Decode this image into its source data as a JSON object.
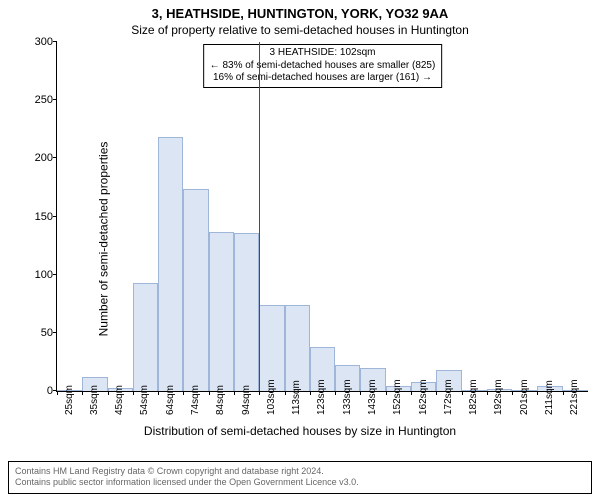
{
  "title_main": "3, HEATHSIDE, HUNTINGTON, YORK, YO32 9AA",
  "title_sub": "Size of property relative to semi-detached houses in Huntington",
  "ylabel": "Number of semi-detached properties",
  "xlabel": "Distribution of semi-detached houses by size in Huntington",
  "chart": {
    "type": "histogram",
    "ymax": 300,
    "ytick_step": 50,
    "bar_fill": "#dbe5f4",
    "bar_stroke": "#9fb6d9",
    "background_color": "#ffffff",
    "axis_color": "#000000",
    "categories": [
      "25sqm",
      "35sqm",
      "45sqm",
      "54sqm",
      "64sqm",
      "74sqm",
      "84sqm",
      "94sqm",
      "103sqm",
      "113sqm",
      "123sqm",
      "133sqm",
      "143sqm",
      "152sqm",
      "162sqm",
      "172sqm",
      "182sqm",
      "192sqm",
      "201sqm",
      "211sqm",
      "221sqm"
    ],
    "values": [
      0,
      12,
      3,
      93,
      218,
      174,
      137,
      136,
      74,
      74,
      38,
      22,
      20,
      4,
      8,
      18,
      0,
      2,
      0,
      4,
      0
    ],
    "reference": {
      "index_after": 8,
      "color": "#ff0000",
      "label_title": "3 HEATHSIDE: 102sqm",
      "label_smaller": "← 83% of semi-detached houses are smaller (825)",
      "label_larger": "16% of semi-detached houses are larger (161) →"
    }
  },
  "footer": {
    "line1": "Contains HM Land Registry data © Crown copyright and database right 2024.",
    "line2": "Contains public sector information licensed under the Open Government Licence v3.0."
  },
  "typography": {
    "title_fontsize": 13,
    "subtitle_fontsize": 12,
    "axis_label_fontsize": 12,
    "tick_fontsize": 10,
    "annot_fontsize": 10,
    "footer_fontsize": 9
  }
}
